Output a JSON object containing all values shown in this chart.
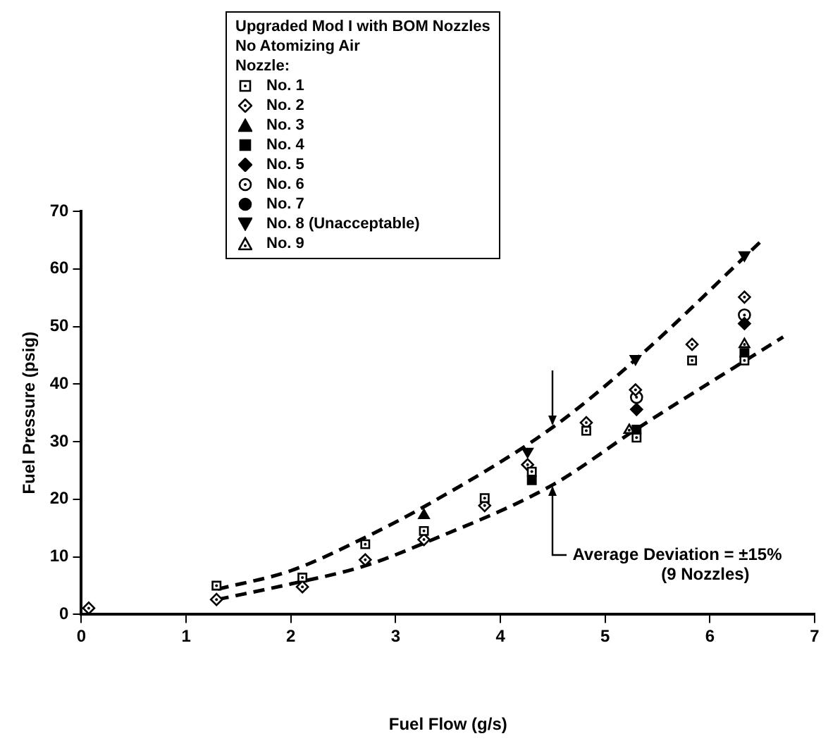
{
  "chart_data": {
    "type": "scatter",
    "xlabel": "Fuel Flow (g/s)",
    "ylabel": "Fuel Pressure (psig)",
    "legend_title": "Upgraded Mod I with BOM Nozzles\nNo Atomizing Air\nNozzle:",
    "xlim": [
      0,
      7
    ],
    "xticks": [
      0,
      1,
      2,
      3,
      4,
      5,
      6,
      7
    ],
    "ylim": [
      0,
      70
    ],
    "yticks": [
      0,
      10,
      20,
      30,
      40,
      50,
      60,
      70
    ],
    "grid": false,
    "legend": "top",
    "tick_labels": true,
    "annotations": [
      {
        "text": "Average Deviation = ±15%\n(9 Nozzles)",
        "x": 4.5,
        "y": 22.5
      }
    ],
    "series": [
      {
        "name": "No. 1",
        "color": "#000000",
        "marker": "square-open",
        "x": [
          1.29,
          2.11,
          2.71,
          3.27,
          3.85,
          4.3,
          4.82,
          5.3,
          5.83,
          6.33
        ],
        "values": [
          5.0,
          6.4,
          12.2,
          14.5,
          20.2,
          24.8,
          31.9,
          30.7,
          44.1,
          44.1
        ]
      },
      {
        "name": "No. 2",
        "color": "#000000",
        "marker": "diamond-open",
        "x": [
          0.07,
          1.29,
          2.11,
          2.71,
          3.27,
          3.85,
          4.26,
          4.82,
          5.29,
          5.83,
          6.33
        ],
        "values": [
          1.1,
          2.6,
          4.8,
          9.5,
          13.0,
          18.9,
          26.0,
          33.3,
          39.0,
          46.9,
          55.1
        ]
      },
      {
        "name": "No. 3",
        "color": "#000000",
        "marker": "triangle",
        "x": [
          3.27
        ],
        "values": [
          17.2
        ]
      },
      {
        "name": "No. 4",
        "color": "#000000",
        "marker": "square",
        "x": [
          4.3,
          5.3,
          6.33
        ],
        "values": [
          23.3,
          32.1,
          45.4
        ]
      },
      {
        "name": "No. 5",
        "color": "#000000",
        "marker": "diamond",
        "x": [
          5.3,
          6.33
        ],
        "values": [
          35.6,
          50.5
        ]
      },
      {
        "name": "No. 6",
        "color": "#000000",
        "marker": "circle-open",
        "x": [
          5.3,
          6.33
        ],
        "values": [
          37.7,
          52.0
        ]
      },
      {
        "name": "No. 7",
        "color": "#000000",
        "marker": "circle"
      },
      {
        "name": "No. 8 (Unacceptable)",
        "color": "#000000",
        "marker": "triangle-down",
        "x": [
          4.26,
          5.29,
          6.33
        ],
        "values": [
          28.3,
          44.4,
          62.4
        ]
      },
      {
        "name": "No. 9",
        "color": "#000000",
        "marker": "triangle-open",
        "x": [
          5.23,
          6.33
        ],
        "values": [
          32.0,
          46.9
        ]
      },
      {
        "type": "line",
        "color": "#000000",
        "line_style": "dashed",
        "marker": "none",
        "x": [
          1.3,
          2,
          2.7,
          3.3,
          4.5,
          5.3,
          6.5
        ],
        "values": [
          4.4,
          7.6,
          13.3,
          19.0,
          32.5,
          44.4,
          65.0
        ]
      },
      {
        "type": "line",
        "color": "#000000",
        "line_style": "dashed",
        "marker": "none",
        "x": [
          1.3,
          2,
          2.7,
          3.3,
          4.5,
          5.3,
          6.7
        ],
        "values": [
          2.6,
          5.3,
          8.4,
          12.6,
          22.5,
          32.2,
          48.2
        ]
      }
    ]
  }
}
